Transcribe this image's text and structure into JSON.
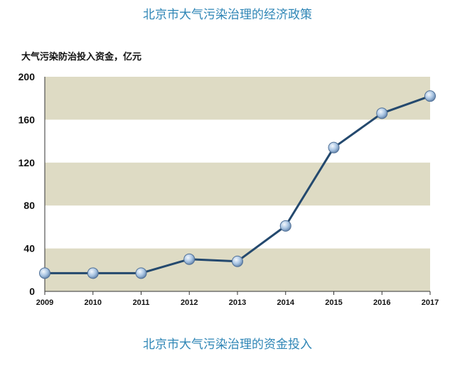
{
  "header": {
    "title": "北京市大气污染治理的经济政策"
  },
  "footer": {
    "caption": "北京市大气污染治理的资金投入"
  },
  "colors": {
    "title": "#2f86b6",
    "band": "#dedbc4",
    "line": "#24496e",
    "marker": "#a9c5e3"
  },
  "chart_data": {
    "type": "line",
    "title": "",
    "ylabel": "大气污染防治投入资金，亿元",
    "xlabel": "",
    "x": [
      "2009",
      "2010",
      "2011",
      "2012",
      "2013",
      "2014",
      "2015",
      "2016",
      "2017"
    ],
    "series": [
      {
        "values": [
          17,
          17,
          17,
          30,
          28,
          61,
          134,
          166,
          182
        ]
      }
    ],
    "ylim": [
      0,
      200
    ],
    "yticks": [
      "0",
      "40",
      "80",
      "120",
      "160",
      "200"
    ],
    "grid": "alternating horizontal bands",
    "legend": "none"
  }
}
